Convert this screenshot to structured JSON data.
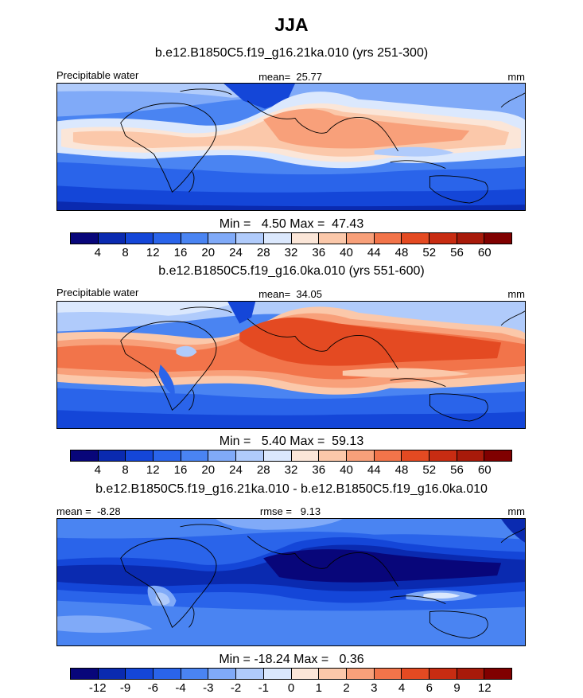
{
  "figure": {
    "title": "JJA"
  },
  "panels": [
    {
      "subtitle": "b.e12.B1850C5.f19_g16.21ka.010 (yrs 251-300)",
      "left_label": "Precipitable water",
      "mid_label": "mean=  25.77",
      "right_label": "mm",
      "minmax": "Min =   4.50 Max =  47.43",
      "palette": "full"
    },
    {
      "subtitle": "b.e12.B1850C5.f19_g16.0ka.010 (yrs 551-600)",
      "left_label": "Precipitable water",
      "mid_label": "mean=  34.05",
      "right_label": "mm",
      "minmax": "Min =   5.40 Max =  59.13",
      "palette": "full"
    },
    {
      "subtitle": "b.e12.B1850C5.f19_g16.21ka.010 - b.e12.B1850C5.f19_g16.0ka.010",
      "left_label": "mean =  -8.28",
      "mid_label": "rmse =   9.13",
      "right_label": "mm",
      "minmax": "Min = -18.24 Max =   0.36",
      "palette": "diff"
    }
  ],
  "chart_data": [
    {
      "type": "heatmap",
      "title": "b.e12.B1850C5.f19_g16.21ka.010 (yrs 251-300)",
      "variable": "Precipitable water",
      "units": "mm",
      "mean": 25.77,
      "min": 4.5,
      "max": 47.43,
      "contour_levels": [
        4,
        8,
        12,
        16,
        20,
        24,
        28,
        32,
        36,
        40,
        44,
        48,
        52,
        56,
        60
      ],
      "colors": [
        "#08067a",
        "#0a2ab0",
        "#1446d8",
        "#2a64ea",
        "#4a84f2",
        "#80aaf8",
        "#b0cbfb",
        "#dbe8fd",
        "#fbe6d8",
        "#fbc8aa",
        "#f8a07a",
        "#f2744a",
        "#e44a22",
        "#c82c12",
        "#a81a0a",
        "#800000"
      ]
    },
    {
      "type": "heatmap",
      "title": "b.e12.B1850C5.f19_g16.0ka.010 (yrs 551-600)",
      "variable": "Precipitable water",
      "units": "mm",
      "mean": 34.05,
      "min": 5.4,
      "max": 59.13,
      "contour_levels": [
        4,
        8,
        12,
        16,
        20,
        24,
        28,
        32,
        36,
        40,
        44,
        48,
        52,
        56,
        60
      ],
      "colors": [
        "#08067a",
        "#0a2ab0",
        "#1446d8",
        "#2a64ea",
        "#4a84f2",
        "#80aaf8",
        "#b0cbfb",
        "#dbe8fd",
        "#fbe6d8",
        "#fbc8aa",
        "#f8a07a",
        "#f2744a",
        "#e44a22",
        "#c82c12",
        "#a81a0a",
        "#800000"
      ]
    },
    {
      "type": "heatmap",
      "title": "b.e12.B1850C5.f19_g16.21ka.010 - b.e12.B1850C5.f19_g16.0ka.010",
      "units": "mm",
      "mean": -8.28,
      "rmse": 9.13,
      "min": -18.24,
      "max": 0.36,
      "contour_levels": [
        -12,
        -9,
        -6,
        -4,
        -3,
        -2,
        -1,
        0,
        1,
        2,
        3,
        4,
        6,
        9,
        12
      ],
      "colors": [
        "#08067a",
        "#0a2ab0",
        "#1446d8",
        "#2a64ea",
        "#4a84f2",
        "#80aaf8",
        "#b0cbfb",
        "#dbe8fd",
        "#fbe6d8",
        "#fbc8aa",
        "#f8a07a",
        "#f2744a",
        "#e44a22",
        "#c82c12",
        "#a81a0a",
        "#800000"
      ]
    }
  ]
}
